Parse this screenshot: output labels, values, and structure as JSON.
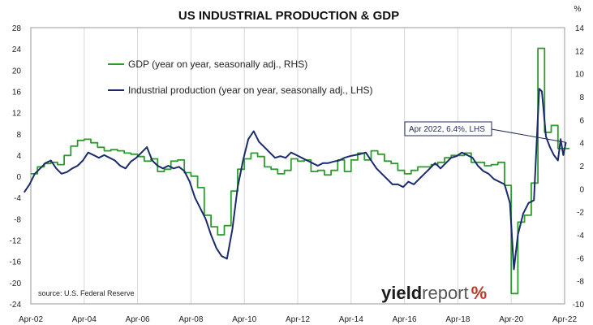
{
  "chart_data": {
    "type": "line",
    "title": "US INDUSTRIAL PRODUCTION & GDP",
    "y2_unit": "%",
    "x_ticks": [
      "Apr-02",
      "Apr-04",
      "Apr-06",
      "Apr-08",
      "Apr-10",
      "Apr-12",
      "Apr-14",
      "Apr-16",
      "Apr-18",
      "Apr-20",
      "Apr-22"
    ],
    "y_left": {
      "ylim": [
        -24,
        28
      ],
      "ticks": [
        28,
        24,
        20,
        16,
        12,
        8,
        4,
        0,
        -4,
        -8,
        -12,
        -16,
        -20,
        -24
      ]
    },
    "y_right": {
      "ylim": [
        -10,
        14
      ],
      "ticks": [
        14,
        12,
        10,
        8,
        6,
        4,
        2,
        0,
        -2,
        -4,
        -6,
        -8,
        -10
      ]
    },
    "legend_placement": "top-left",
    "grid": "vertical",
    "series": [
      {
        "name": "GDP (year on year, seasonally adj., RHS)",
        "color": "#2e9b2e",
        "axis": "right",
        "step": true,
        "points": [
          [
            2002.25,
            1.3
          ],
          [
            2002.5,
            1.9
          ],
          [
            2002.75,
            2.2
          ],
          [
            2003.0,
            2.3
          ],
          [
            2003.25,
            2.1
          ],
          [
            2003.5,
            2.9
          ],
          [
            2003.75,
            3.7
          ],
          [
            2004.0,
            4.2
          ],
          [
            2004.25,
            4.3
          ],
          [
            2004.5,
            4.0
          ],
          [
            2004.75,
            3.6
          ],
          [
            2005.0,
            3.3
          ],
          [
            2005.25,
            3.4
          ],
          [
            2005.5,
            3.3
          ],
          [
            2005.75,
            3.1
          ],
          [
            2006.0,
            3.0
          ],
          [
            2006.25,
            2.8
          ],
          [
            2006.5,
            2.4
          ],
          [
            2006.75,
            2.6
          ],
          [
            2007.0,
            1.5
          ],
          [
            2007.25,
            1.7
          ],
          [
            2007.5,
            2.4
          ],
          [
            2007.75,
            2.5
          ],
          [
            2008.0,
            1.4
          ],
          [
            2008.25,
            1.1
          ],
          [
            2008.5,
            0.1
          ],
          [
            2008.75,
            -2.3
          ],
          [
            2009.0,
            -3.3
          ],
          [
            2009.25,
            -4.0
          ],
          [
            2009.5,
            -3.2
          ],
          [
            2009.75,
            -0.2
          ],
          [
            2010.0,
            1.7
          ],
          [
            2010.25,
            2.6
          ],
          [
            2010.5,
            3.1
          ],
          [
            2010.75,
            2.8
          ],
          [
            2011.0,
            1.9
          ],
          [
            2011.25,
            1.7
          ],
          [
            2011.5,
            1.3
          ],
          [
            2011.75,
            1.6
          ],
          [
            2012.0,
            2.6
          ],
          [
            2012.25,
            2.4
          ],
          [
            2012.5,
            2.5
          ],
          [
            2012.75,
            1.5
          ],
          [
            2013.0,
            1.6
          ],
          [
            2013.25,
            1.2
          ],
          [
            2013.5,
            1.6
          ],
          [
            2013.75,
            2.5
          ],
          [
            2014.0,
            1.5
          ],
          [
            2014.25,
            2.5
          ],
          [
            2014.5,
            3.1
          ],
          [
            2014.75,
            2.5
          ],
          [
            2015.0,
            3.3
          ],
          [
            2015.25,
            3.0
          ],
          [
            2015.5,
            2.4
          ],
          [
            2015.75,
            2.2
          ],
          [
            2016.0,
            1.6
          ],
          [
            2016.25,
            1.3
          ],
          [
            2016.5,
            1.6
          ],
          [
            2016.75,
            1.9
          ],
          [
            2017.0,
            1.9
          ],
          [
            2017.25,
            2.1
          ],
          [
            2017.5,
            2.3
          ],
          [
            2017.75,
            2.7
          ],
          [
            2018.0,
            2.9
          ],
          [
            2018.25,
            2.9
          ],
          [
            2018.5,
            3.1
          ],
          [
            2018.75,
            2.3
          ],
          [
            2019.0,
            2.3
          ],
          [
            2019.25,
            2.0
          ],
          [
            2019.5,
            2.1
          ],
          [
            2019.75,
            2.3
          ],
          [
            2020.0,
            0.3
          ],
          [
            2020.25,
            -9.1
          ],
          [
            2020.5,
            -2.9
          ],
          [
            2020.75,
            -2.3
          ],
          [
            2021.0,
            0.5
          ],
          [
            2021.25,
            12.2
          ],
          [
            2021.5,
            4.9
          ],
          [
            2021.75,
            5.5
          ],
          [
            2022.0,
            3.5
          ],
          [
            2022.25,
            3.5
          ]
        ]
      },
      {
        "name": "Industrial production (year on year, seasonally adj., LHS)",
        "color": "#1a2b6b",
        "axis": "left",
        "step": false,
        "points": [
          [
            2002.0,
            -3.0
          ],
          [
            2002.2,
            -1.5
          ],
          [
            2002.4,
            0.5
          ],
          [
            2002.6,
            1.5
          ],
          [
            2002.8,
            2.5
          ],
          [
            2003.0,
            3.0
          ],
          [
            2003.2,
            1.5
          ],
          [
            2003.4,
            0.5
          ],
          [
            2003.6,
            0.8
          ],
          [
            2003.8,
            1.5
          ],
          [
            2004.0,
            2.0
          ],
          [
            2004.2,
            3.0
          ],
          [
            2004.4,
            4.5
          ],
          [
            2004.6,
            4.0
          ],
          [
            2004.8,
            3.5
          ],
          [
            2005.0,
            4.0
          ],
          [
            2005.2,
            3.5
          ],
          [
            2005.4,
            3.0
          ],
          [
            2005.6,
            2.0
          ],
          [
            2005.8,
            1.5
          ],
          [
            2006.0,
            2.8
          ],
          [
            2006.2,
            3.5
          ],
          [
            2006.4,
            4.5
          ],
          [
            2006.6,
            5.5
          ],
          [
            2006.8,
            3.0
          ],
          [
            2007.0,
            2.0
          ],
          [
            2007.2,
            1.5
          ],
          [
            2007.4,
            2.0
          ],
          [
            2007.6,
            1.5
          ],
          [
            2007.8,
            1.8
          ],
          [
            2008.0,
            1.0
          ],
          [
            2008.2,
            -1.0
          ],
          [
            2008.4,
            -4.0
          ],
          [
            2008.6,
            -6.0
          ],
          [
            2008.8,
            -8.0
          ],
          [
            2009.0,
            -11.0
          ],
          [
            2009.2,
            -13.5
          ],
          [
            2009.4,
            -15.0
          ],
          [
            2009.6,
            -15.5
          ],
          [
            2009.8,
            -10.0
          ],
          [
            2010.0,
            -2.0
          ],
          [
            2010.2,
            3.0
          ],
          [
            2010.4,
            7.0
          ],
          [
            2010.6,
            8.5
          ],
          [
            2010.8,
            6.5
          ],
          [
            2011.0,
            5.5
          ],
          [
            2011.2,
            4.5
          ],
          [
            2011.4,
            3.5
          ],
          [
            2011.6,
            3.8
          ],
          [
            2011.8,
            3.5
          ],
          [
            2012.0,
            4.5
          ],
          [
            2012.2,
            4.0
          ],
          [
            2012.4,
            3.5
          ],
          [
            2012.6,
            3.0
          ],
          [
            2012.8,
            2.5
          ],
          [
            2013.0,
            2.0
          ],
          [
            2013.2,
            2.5
          ],
          [
            2013.4,
            2.5
          ],
          [
            2013.6,
            2.8
          ],
          [
            2013.8,
            3.0
          ],
          [
            2014.0,
            3.5
          ],
          [
            2014.2,
            3.8
          ],
          [
            2014.4,
            4.0
          ],
          [
            2014.6,
            4.2
          ],
          [
            2014.8,
            4.5
          ],
          [
            2015.0,
            3.0
          ],
          [
            2015.2,
            1.5
          ],
          [
            2015.4,
            0.5
          ],
          [
            2015.6,
            -0.5
          ],
          [
            2015.8,
            -1.5
          ],
          [
            2016.0,
            -1.5
          ],
          [
            2016.2,
            -2.0
          ],
          [
            2016.4,
            -1.0
          ],
          [
            2016.6,
            -1.5
          ],
          [
            2016.8,
            -0.5
          ],
          [
            2017.0,
            0.5
          ],
          [
            2017.2,
            1.5
          ],
          [
            2017.4,
            2.5
          ],
          [
            2017.6,
            1.5
          ],
          [
            2017.8,
            2.5
          ],
          [
            2018.0,
            3.5
          ],
          [
            2018.2,
            3.8
          ],
          [
            2018.4,
            4.5
          ],
          [
            2018.6,
            4.0
          ],
          [
            2018.8,
            3.5
          ],
          [
            2019.0,
            2.0
          ],
          [
            2019.2,
            1.0
          ],
          [
            2019.4,
            0.5
          ],
          [
            2019.6,
            -0.5
          ],
          [
            2019.8,
            -1.0
          ],
          [
            2020.0,
            -1.5
          ],
          [
            2020.2,
            -5.0
          ],
          [
            2020.35,
            -17.5
          ],
          [
            2020.5,
            -11.0
          ],
          [
            2020.7,
            -7.0
          ],
          [
            2020.9,
            -5.0
          ],
          [
            2021.1,
            -4.5
          ],
          [
            2021.3,
            16.5
          ],
          [
            2021.4,
            16.0
          ],
          [
            2021.55,
            7.5
          ],
          [
            2021.7,
            5.5
          ],
          [
            2021.85,
            4.0
          ],
          [
            2022.0,
            3.0
          ],
          [
            2022.1,
            7.0
          ],
          [
            2022.2,
            4.0
          ],
          [
            2022.3,
            6.4
          ]
        ]
      }
    ],
    "annotations": [
      {
        "text": "Apr 2022, 6.4%, LHS",
        "x": 2022.3,
        "y": 6.4,
        "axis": "left"
      }
    ],
    "source": "source: U.S. Federal Reserve"
  },
  "logo": {
    "main": "yield",
    "report": "report",
    "pct": "%"
  }
}
